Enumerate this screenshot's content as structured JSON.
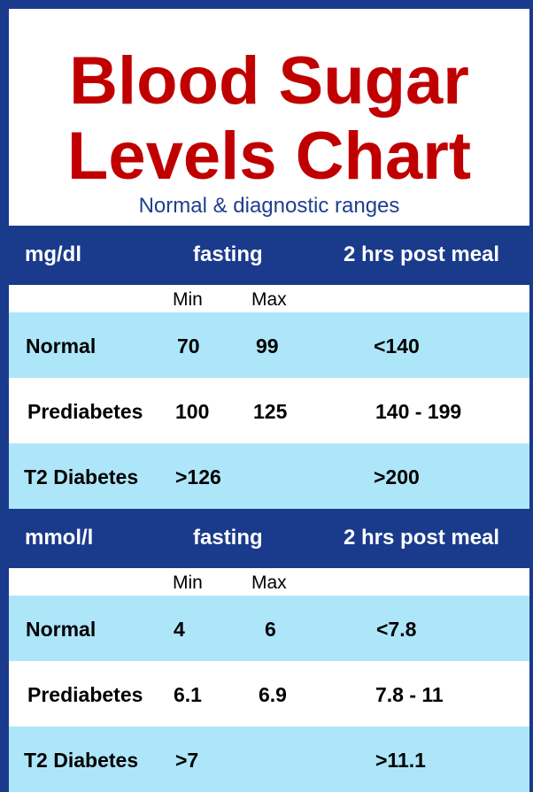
{
  "title_line1": "Blood Sugar",
  "title_line2": "Levels Chart",
  "subtitle": "Normal & diagnostic ranges",
  "colors": {
    "background": "#1a3b8c",
    "title": "#c00000",
    "row_highlight": "#aee6f9"
  },
  "tables": [
    {
      "unit": "mg/dl",
      "fasting": "fasting",
      "post_meal": "2 hrs post meal",
      "min_label": "Min",
      "max_label": "Max",
      "rows": [
        {
          "label": "Normal",
          "min": "70",
          "max": "99",
          "post": "<140"
        },
        {
          "label": "Prediabetes",
          "min": "100",
          "max": "125",
          "post": "140 - 199"
        },
        {
          "label": "T2 Diabetes",
          "min": ">126",
          "max": "",
          "post": ">200"
        }
      ]
    },
    {
      "unit": "mmol/l",
      "fasting": "fasting",
      "post_meal": "2 hrs post meal",
      "min_label": "Min",
      "max_label": "Max",
      "rows": [
        {
          "label": "Normal",
          "min": "4",
          "max": "6",
          "post": "<7.8"
        },
        {
          "label": "Prediabetes",
          "min": "6.1",
          "max": "6.9",
          "post": "7.8 - 11"
        },
        {
          "label": "T2 Diabetes",
          "min": ">7",
          "max": "",
          "post": ">11.1"
        }
      ]
    }
  ]
}
